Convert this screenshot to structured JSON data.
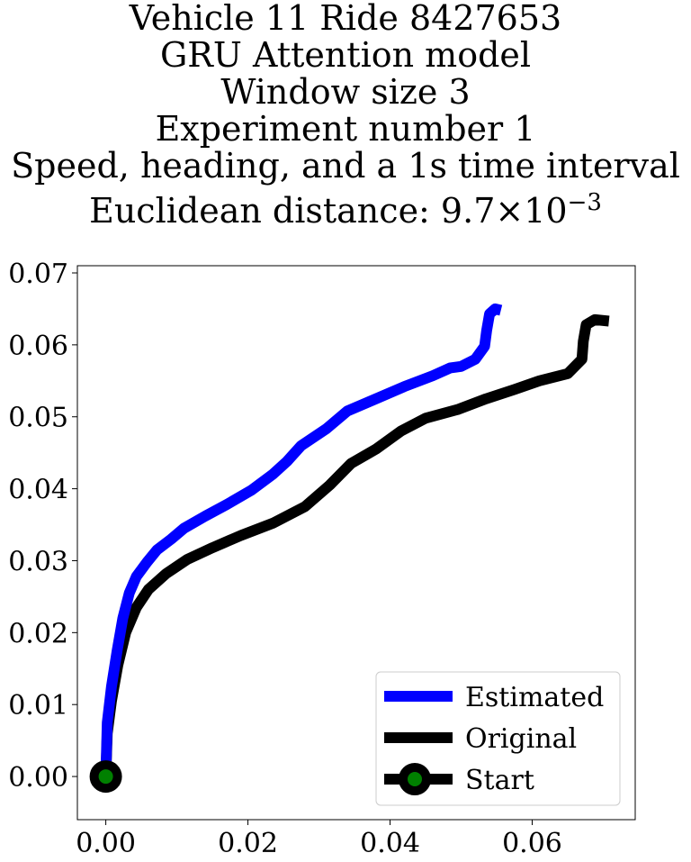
{
  "title_lines": [
    "Vehicle 11 Ride 8427653",
    "GRU Attention model",
    "Window size 3",
    "Experiment number 1",
    "Speed, heading, and a 1s time interval"
  ],
  "distance_line": {
    "prefix": "Euclidean distance: 9.7",
    "times": "×",
    "base": "10",
    "exponent": "−3"
  },
  "chart_data": {
    "type": "line",
    "title": "Vehicle 11 Ride 8427653 / GRU Attention model / Window size 3 / Experiment number 1 / Speed, heading, and a 1s time interval / Euclidean distance: 9.7×10^-3",
    "xlabel": "",
    "ylabel": "",
    "xlim": [
      -0.004,
      0.0745
    ],
    "ylim": [
      -0.006,
      0.071
    ],
    "xticks": [
      0.0,
      0.02,
      0.04,
      0.06
    ],
    "xtick_labels": [
      "0.00",
      "0.02",
      "0.04",
      "0.06"
    ],
    "yticks": [
      0.0,
      0.01,
      0.02,
      0.03,
      0.04,
      0.05,
      0.06,
      0.07
    ],
    "ytick_labels": [
      "0.00",
      "0.01",
      "0.02",
      "0.03",
      "0.04",
      "0.05",
      "0.06",
      "0.07"
    ],
    "grid": false,
    "legend_position": "lower-right",
    "series": [
      {
        "name": "Estimated",
        "color": "#0000ff",
        "points": [
          [
            0.0,
            0.0
          ],
          [
            0.0002,
            0.0075
          ],
          [
            0.0008,
            0.0125
          ],
          [
            0.0016,
            0.0175
          ],
          [
            0.0024,
            0.022
          ],
          [
            0.0033,
            0.0255
          ],
          [
            0.0043,
            0.0278
          ],
          [
            0.0058,
            0.0298
          ],
          [
            0.0072,
            0.0315
          ],
          [
            0.0092,
            0.033
          ],
          [
            0.011,
            0.0345
          ],
          [
            0.014,
            0.0362
          ],
          [
            0.017,
            0.0378
          ],
          [
            0.0205,
            0.0398
          ],
          [
            0.0235,
            0.042
          ],
          [
            0.0255,
            0.0438
          ],
          [
            0.0275,
            0.046
          ],
          [
            0.031,
            0.0483
          ],
          [
            0.034,
            0.0508
          ],
          [
            0.038,
            0.0525
          ],
          [
            0.042,
            0.0542
          ],
          [
            0.046,
            0.0557
          ],
          [
            0.0485,
            0.0568
          ],
          [
            0.05,
            0.057
          ],
          [
            0.052,
            0.058
          ],
          [
            0.0533,
            0.0598
          ],
          [
            0.0536,
            0.062
          ],
          [
            0.054,
            0.0643
          ],
          [
            0.0548,
            0.065
          ],
          [
            0.0556,
            0.0648
          ]
        ]
      },
      {
        "name": "Original",
        "color": "#000000",
        "points": [
          [
            0.0,
            0.0
          ],
          [
            0.0002,
            0.006
          ],
          [
            0.0008,
            0.0105
          ],
          [
            0.0017,
            0.0155
          ],
          [
            0.0028,
            0.02
          ],
          [
            0.0043,
            0.0235
          ],
          [
            0.006,
            0.026
          ],
          [
            0.0085,
            0.0282
          ],
          [
            0.0115,
            0.0302
          ],
          [
            0.015,
            0.0318
          ],
          [
            0.019,
            0.0335
          ],
          [
            0.0235,
            0.0352
          ],
          [
            0.028,
            0.0375
          ],
          [
            0.0315,
            0.0405
          ],
          [
            0.0345,
            0.0435
          ],
          [
            0.038,
            0.0455
          ],
          [
            0.0415,
            0.048
          ],
          [
            0.045,
            0.0498
          ],
          [
            0.0495,
            0.051
          ],
          [
            0.0535,
            0.0525
          ],
          [
            0.0575,
            0.0538
          ],
          [
            0.061,
            0.055
          ],
          [
            0.065,
            0.056
          ],
          [
            0.067,
            0.058
          ],
          [
            0.0672,
            0.0605
          ],
          [
            0.0676,
            0.0628
          ],
          [
            0.0688,
            0.0635
          ],
          [
            0.0708,
            0.0633
          ]
        ]
      }
    ],
    "start_point": {
      "name": "Start",
      "x": 0.0,
      "y": 0.0,
      "marker_color": "#008000",
      "ring_color": "#000000"
    }
  }
}
